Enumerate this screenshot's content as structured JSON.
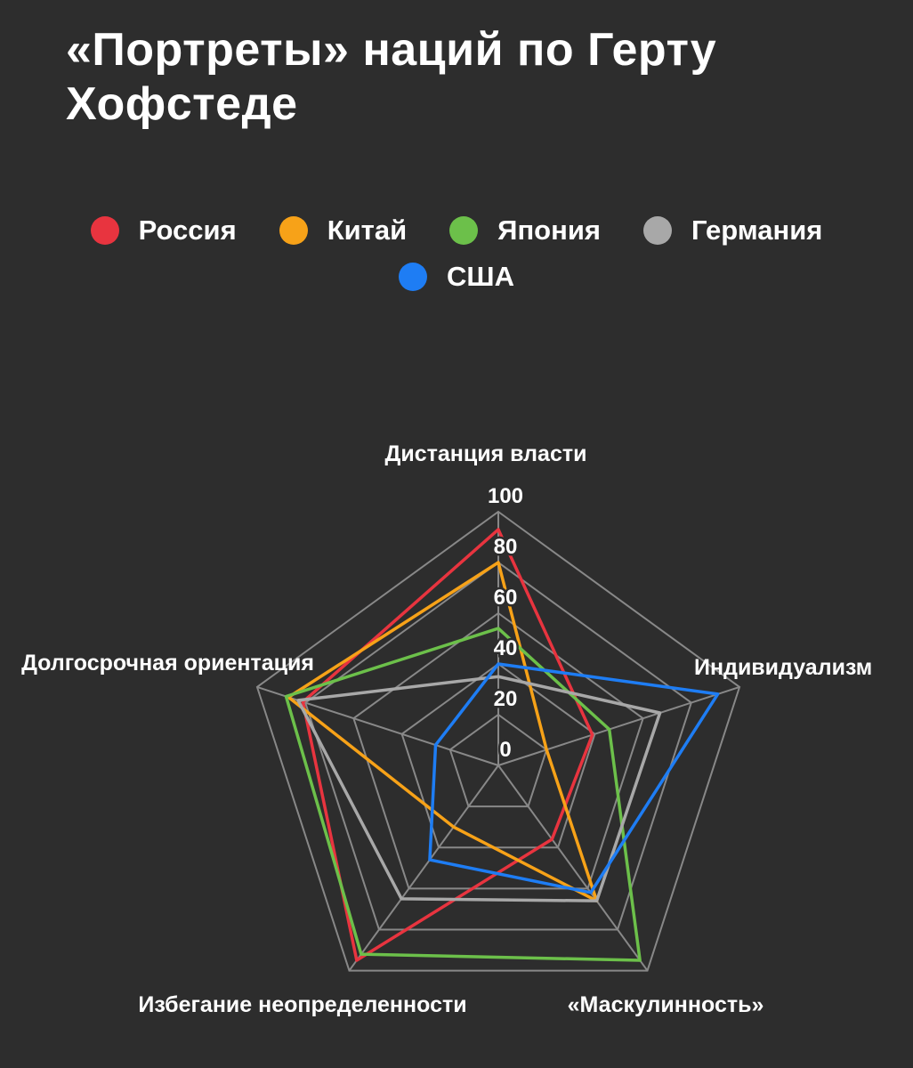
{
  "title": {
    "full": "«Портреты» наций по Герту Хофстеде",
    "line1": "«Портреты» наций по Герту",
    "line2": "Хофстеде"
  },
  "colors": {
    "background": "#2d2d2d",
    "grid": "#888888",
    "text": "#ffffff"
  },
  "legend": [
    {
      "label": "Россия",
      "color": "#e8343f"
    },
    {
      "label": "Китай",
      "color": "#f7a218"
    },
    {
      "label": "Япония",
      "color": "#6cc04a"
    },
    {
      "label": "Германия",
      "color": "#a8a8a8"
    },
    {
      "label": "США",
      "color": "#1e7df4"
    }
  ],
  "chart_data": {
    "type": "radar",
    "title": "«Портреты» наций по Герту Хофстеде",
    "categories": [
      "Дистанция власти",
      "Индивидуализм",
      "«Маскулинность»",
      "Избегание неопределенности",
      "Долгосрочная ориентация"
    ],
    "ticks": [
      0,
      20,
      40,
      60,
      80,
      100
    ],
    "rmax": 100,
    "grid": true,
    "legend_position": "top",
    "series": [
      {
        "name": "Россия",
        "color": "#e8343f",
        "values": [
          93,
          39,
          36,
          95,
          81
        ]
      },
      {
        "name": "Китай",
        "color": "#f7a218",
        "values": [
          80,
          20,
          66,
          30,
          87
        ]
      },
      {
        "name": "Япония",
        "color": "#6cc04a",
        "values": [
          54,
          46,
          95,
          92,
          88
        ]
      },
      {
        "name": "Германия",
        "color": "#a8a8a8",
        "values": [
          35,
          67,
          66,
          65,
          83
        ]
      },
      {
        "name": "США",
        "color": "#1e7df4",
        "values": [
          40,
          91,
          62,
          46,
          26
        ]
      }
    ]
  }
}
